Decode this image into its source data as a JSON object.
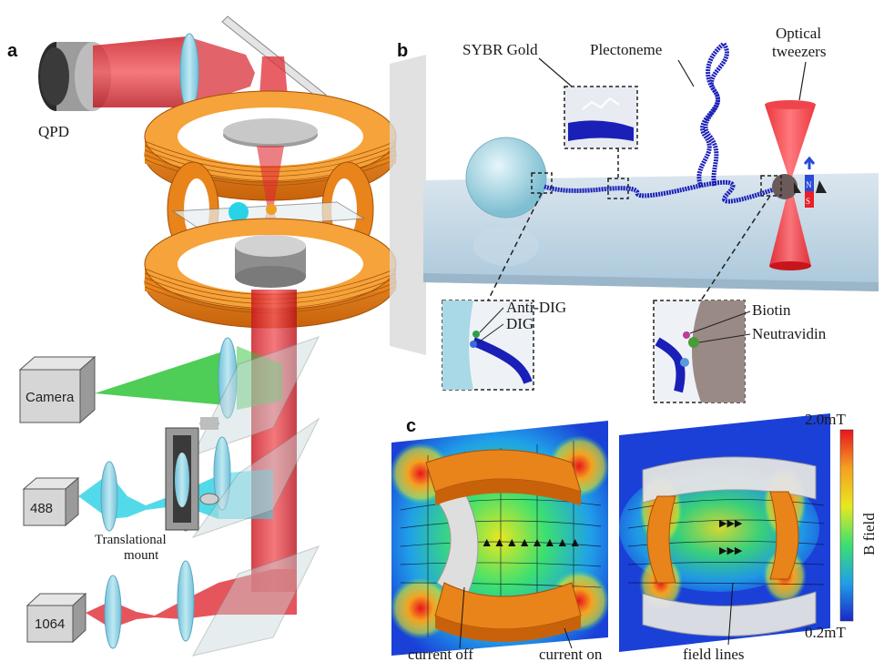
{
  "panels": {
    "a": "a",
    "b": "b",
    "c": "c"
  },
  "panel_a": {
    "qpd": "QPD",
    "camera": "Camera",
    "laser_488": "488",
    "laser_1064": "1064",
    "mount_line1": "Translational",
    "mount_line2": "mount"
  },
  "panel_b": {
    "sybr": "SYBR Gold",
    "plectoneme": "Plectoneme",
    "tweezers_line1": "Optical",
    "tweezers_line2": "tweezers",
    "anti_dig": "Anti-DIG",
    "dig": "DIG",
    "biotin": "Biotin",
    "neutravidin": "Neutravidin",
    "magnet_n": "N",
    "magnet_s": "S"
  },
  "panel_c": {
    "current_off": "current off",
    "current_on": "current on",
    "field_lines": "field lines",
    "colorbar_max": "2.0mT",
    "colorbar_min": "0.2mT",
    "colorbar_title": "B field"
  },
  "colors": {
    "coil": "#e8841a",
    "laser_1064": "#e8323a",
    "laser_488": "#3fd6e6",
    "camera_beam": "#3ac23a",
    "lens": "#8fd3e6",
    "dna": "#1a1fb8",
    "bead": "#a9d8e6"
  }
}
